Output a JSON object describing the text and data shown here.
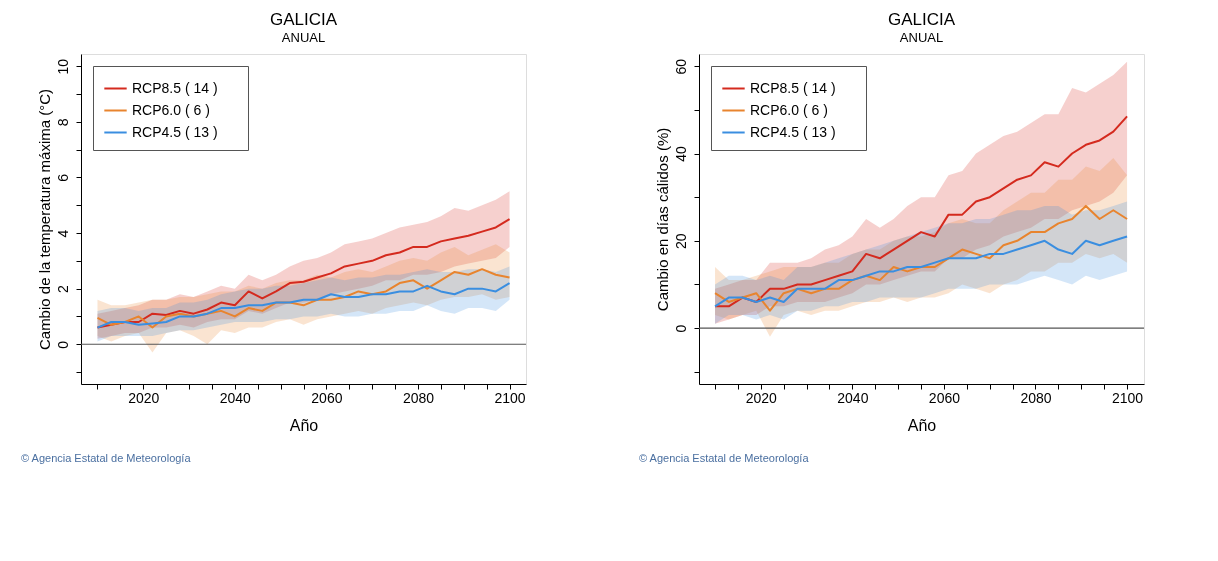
{
  "chart_data": [
    {
      "type": "line",
      "title": "GALICIA",
      "subtitle": "ANUAL",
      "xlabel": "Año",
      "ylabel": "Cambio  de la temperatura máxima (°C)",
      "x": [
        2010,
        2013,
        2016,
        2019,
        2022,
        2025,
        2028,
        2031,
        2034,
        2037,
        2040,
        2043,
        2046,
        2049,
        2052,
        2055,
        2058,
        2061,
        2064,
        2067,
        2070,
        2073,
        2076,
        2079,
        2082,
        2085,
        2088,
        2091,
        2094,
        2097,
        2100
      ],
      "xlim": [
        2006.4,
        2103.6
      ],
      "xticks": [
        {
          "value": 2010,
          "label": null
        },
        {
          "value": 2015,
          "label": null
        },
        2020,
        {
          "value": 2025,
          "label": null
        },
        {
          "value": 2030,
          "label": null
        },
        {
          "value": 2035,
          "label": null
        },
        2040,
        {
          "value": 2045,
          "label": null
        },
        {
          "value": 2050,
          "label": null
        },
        {
          "value": 2055,
          "label": null
        },
        2060,
        {
          "value": 2065,
          "label": null
        },
        {
          "value": 2070,
          "label": null
        },
        {
          "value": 2075,
          "label": null
        },
        2080,
        {
          "value": 2085,
          "label": null
        },
        {
          "value": 2090,
          "label": null
        },
        {
          "value": 2095,
          "label": null
        },
        2100
      ],
      "ylim": [
        -1.43,
        10.44
      ],
      "yticks": [
        {
          "value": -1,
          "label": null
        },
        0,
        {
          "value": 1,
          "label": null
        },
        2,
        {
          "value": 3,
          "label": null
        },
        4,
        {
          "value": 5,
          "label": null
        },
        6,
        {
          "value": 7,
          "label": null
        },
        8,
        {
          "value": 9,
          "label": null
        },
        10
      ],
      "series": [
        {
          "name": "RCP8.5      ( 14 )",
          "color": "#d42a1e",
          "values": [
            0.6,
            0.7,
            0.8,
            0.8,
            1.1,
            1.05,
            1.2,
            1.1,
            1.25,
            1.5,
            1.4,
            1.9,
            1.65,
            1.9,
            2.2,
            2.25,
            2.4,
            2.55,
            2.8,
            2.9,
            3.0,
            3.2,
            3.3,
            3.5,
            3.5,
            3.7,
            3.8,
            3.9,
            4.05,
            4.2,
            4.5
          ],
          "lower": [
            0.2,
            0.3,
            0.4,
            0.4,
            0.6,
            0.6,
            0.7,
            0.6,
            0.8,
            0.9,
            0.9,
            1.2,
            1.1,
            1.3,
            1.5,
            1.5,
            1.6,
            1.8,
            1.9,
            2.0,
            2.1,
            2.3,
            2.3,
            2.5,
            2.5,
            2.6,
            2.8,
            2.9,
            3.0,
            3.1,
            3.5
          ],
          "upper": [
            1.1,
            1.2,
            1.3,
            1.4,
            1.6,
            1.6,
            1.8,
            1.7,
            1.9,
            2.1,
            2.0,
            2.5,
            2.3,
            2.5,
            2.8,
            3.0,
            3.1,
            3.3,
            3.6,
            3.7,
            3.8,
            4.0,
            4.2,
            4.3,
            4.4,
            4.6,
            4.9,
            4.8,
            5.0,
            5.2,
            5.5
          ]
        },
        {
          "name": "RCP6.0      (   6 )",
          "color": "#e8842e",
          "values": [
            0.95,
            0.7,
            0.8,
            1.0,
            0.6,
            1.0,
            1.1,
            1.0,
            1.1,
            1.2,
            1.0,
            1.3,
            1.2,
            1.5,
            1.5,
            1.4,
            1.6,
            1.6,
            1.7,
            1.9,
            1.8,
            1.9,
            2.2,
            2.3,
            2.0,
            2.3,
            2.6,
            2.5,
            2.7,
            2.5,
            2.4
          ],
          "lower": [
            0.3,
            0.1,
            0.3,
            0.4,
            -0.3,
            0.4,
            0.5,
            0.3,
            0.0,
            0.5,
            0.4,
            0.6,
            0.6,
            0.8,
            0.9,
            0.7,
            0.9,
            1.0,
            1.1,
            1.2,
            1.1,
            1.3,
            1.4,
            1.5,
            1.4,
            1.6,
            1.7,
            1.7,
            1.8,
            1.6,
            1.7
          ],
          "upper": [
            1.6,
            1.4,
            1.4,
            1.5,
            1.6,
            1.6,
            1.7,
            1.7,
            1.8,
            1.9,
            1.9,
            2.1,
            2.0,
            2.2,
            2.3,
            2.3,
            2.5,
            2.4,
            2.6,
            2.7,
            2.6,
            2.8,
            3.0,
            3.1,
            3.0,
            3.3,
            3.5,
            3.2,
            3.4,
            3.6,
            3.3
          ]
        },
        {
          "name": "RCP4.5      ( 13 )",
          "color": "#3a8ee0",
          "values": [
            0.6,
            0.8,
            0.8,
            0.7,
            0.75,
            0.8,
            1.0,
            1.0,
            1.1,
            1.3,
            1.3,
            1.4,
            1.4,
            1.5,
            1.5,
            1.6,
            1.6,
            1.8,
            1.7,
            1.7,
            1.8,
            1.8,
            1.9,
            1.9,
            2.1,
            1.9,
            1.8,
            2.0,
            2.0,
            1.9,
            2.2
          ],
          "lower": [
            0.1,
            0.3,
            0.3,
            0.3,
            0.3,
            0.4,
            0.5,
            0.5,
            0.6,
            0.7,
            0.8,
            0.8,
            0.8,
            0.9,
            0.9,
            1.0,
            1.0,
            1.1,
            1.0,
            1.0,
            1.1,
            1.1,
            1.2,
            1.2,
            1.4,
            1.2,
            1.1,
            1.3,
            1.3,
            1.2,
            1.6
          ],
          "upper": [
            1.2,
            1.3,
            1.3,
            1.2,
            1.3,
            1.3,
            1.5,
            1.5,
            1.6,
            1.8,
            1.9,
            2.0,
            2.0,
            2.1,
            2.1,
            2.2,
            2.3,
            2.4,
            2.3,
            2.4,
            2.4,
            2.5,
            2.5,
            2.6,
            2.7,
            2.6,
            2.6,
            2.7,
            2.7,
            2.6,
            2.8
          ]
        }
      ],
      "ref_lines": [
        {
          "axis": "y",
          "value": 0,
          "label": null,
          "color": "#555555"
        }
      ],
      "annotations": [
        "© Agencia Estatal de Meteorología"
      ],
      "legend": "top left",
      "grid": false,
      "line_style": "solid",
      "marker": "none"
    },
    {
      "type": "line",
      "title": "GALICIA",
      "subtitle": "ANUAL",
      "xlabel": "Año",
      "ylabel": "Cambio en días cálidos (%)",
      "x": [
        2010,
        2013,
        2016,
        2019,
        2022,
        2025,
        2028,
        2031,
        2034,
        2037,
        2040,
        2043,
        2046,
        2049,
        2052,
        2055,
        2058,
        2061,
        2064,
        2067,
        2070,
        2073,
        2076,
        2079,
        2082,
        2085,
        2088,
        2091,
        2094,
        2097,
        2100
      ],
      "xlim": [
        2006.5,
        2103.7
      ],
      "xticks": [
        {
          "value": 2010,
          "label": null
        },
        {
          "value": 2015,
          "label": null
        },
        2020,
        {
          "value": 2025,
          "label": null
        },
        {
          "value": 2030,
          "label": null
        },
        {
          "value": 2035,
          "label": null
        },
        2040,
        {
          "value": 2045,
          "label": null
        },
        {
          "value": 2050,
          "label": null
        },
        {
          "value": 2055,
          "label": null
        },
        2060,
        {
          "value": 2065,
          "label": null
        },
        {
          "value": 2070,
          "label": null
        },
        {
          "value": 2075,
          "label": null
        },
        2080,
        {
          "value": 2085,
          "label": null
        },
        {
          "value": 2090,
          "label": null
        },
        {
          "value": 2095,
          "label": null
        },
        2100
      ],
      "ylim": [
        -12.8,
        62.8
      ],
      "yticks": [
        {
          "value": -10,
          "label": null
        },
        0,
        {
          "value": 10,
          "label": null
        },
        20,
        {
          "value": 30,
          "label": null
        },
        40,
        {
          "value": 50,
          "label": null
        },
        60
      ],
      "series": [
        {
          "name": "RCP8.5      ( 14 )",
          "color": "#d42a1e",
          "values": [
            5,
            5,
            7,
            6,
            9,
            9,
            10,
            10,
            11,
            12,
            13,
            17,
            16,
            18,
            20,
            22,
            21,
            26,
            26,
            29,
            30,
            32,
            34,
            35,
            38,
            37,
            40,
            42,
            43,
            45,
            48.5
          ],
          "lower": [
            1,
            2,
            3,
            3,
            5,
            5,
            6,
            6,
            6,
            7,
            8,
            10,
            10,
            11,
            12,
            13,
            13,
            16,
            16,
            18,
            19,
            21,
            22,
            23,
            25,
            25,
            27,
            28,
            29,
            31,
            35
          ],
          "upper": [
            9,
            10,
            11,
            11,
            15,
            15,
            15,
            16,
            18,
            19,
            21,
            25,
            23,
            25,
            28,
            30,
            30,
            35,
            36,
            40,
            42,
            44,
            45,
            47,
            49,
            49,
            55,
            54,
            56,
            58,
            61
          ]
        },
        {
          "name": "RCP6.0      (   6 )",
          "color": "#e8842e",
          "values": [
            8,
            6,
            7,
            8,
            4,
            8,
            9,
            8,
            9,
            9,
            11,
            12,
            11,
            14,
            13,
            14,
            14,
            16,
            18,
            17,
            16,
            19,
            20,
            22,
            22,
            24,
            25,
            28,
            25,
            27,
            25
          ],
          "lower": [
            3,
            2,
            3,
            4,
            -2,
            3,
            4,
            3,
            4,
            4,
            5,
            6,
            6,
            7,
            6,
            7,
            7,
            8,
            10,
            9,
            8,
            10,
            11,
            13,
            13,
            15,
            15,
            17,
            16,
            17,
            15
          ],
          "upper": [
            14,
            11,
            11,
            12,
            13,
            14,
            14,
            14,
            15,
            15,
            17,
            18,
            18,
            20,
            21,
            21,
            22,
            24,
            25,
            24,
            24,
            27,
            29,
            31,
            31,
            34,
            34,
            37,
            36,
            39,
            35
          ]
        },
        {
          "name": "RCP4.5      ( 13 )",
          "color": "#3a8ee0",
          "values": [
            5,
            7,
            7,
            6,
            7,
            6,
            9,
            9,
            9,
            11,
            11,
            12,
            13,
            13,
            14,
            14,
            15,
            16,
            16,
            16,
            17,
            17,
            18,
            19,
            20,
            18,
            17,
            20,
            19,
            20,
            21
          ],
          "lower": [
            1,
            3,
            3,
            2,
            3,
            2,
            4,
            4,
            5,
            5,
            6,
            6,
            7,
            7,
            7,
            7,
            8,
            9,
            9,
            9,
            10,
            10,
            10,
            11,
            12,
            11,
            10,
            12,
            11,
            12,
            13
          ],
          "upper": [
            10,
            12,
            12,
            11,
            12,
            11,
            14,
            14,
            15,
            16,
            17,
            18,
            19,
            20,
            21,
            22,
            23,
            24,
            24,
            25,
            25,
            26,
            27,
            27,
            28,
            28,
            26,
            27,
            27,
            28,
            29
          ]
        }
      ],
      "ref_lines": [
        {
          "axis": "y",
          "value": 0,
          "label": null,
          "color": "#555555"
        }
      ],
      "annotations": [
        "© Agencia Estatal de Meteorología"
      ],
      "legend": "top left",
      "grid": false,
      "line_style": "solid",
      "marker": "none"
    }
  ]
}
